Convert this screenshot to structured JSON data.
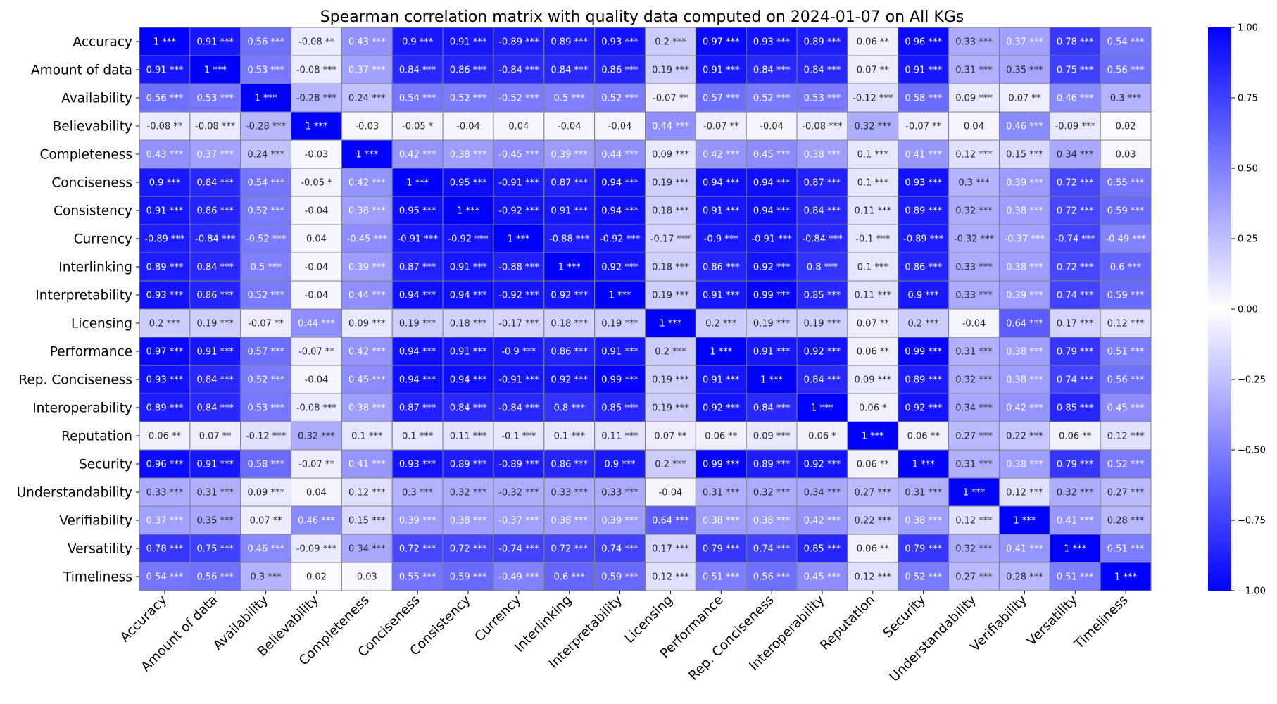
{
  "chart_data": {
    "type": "heatmap",
    "title": "Spearman correlation matrix with quality data computed on 2024-01-07 on All KGs",
    "xlabel": "",
    "ylabel": "",
    "labels": [
      "Accuracy",
      "Amount of data",
      "Availability",
      "Believability",
      "Completeness",
      "Conciseness",
      "Consistency",
      "Currency",
      "Interlinking",
      "Interpretability",
      "Licensing",
      "Performance",
      "Rep. Conciseness",
      "Interoperability",
      "Reputation",
      "Security",
      "Understandability",
      "Verifiability",
      "Versatility",
      "Timeliness"
    ],
    "values": [
      [
        1.0,
        0.91,
        0.56,
        -0.08,
        0.43,
        0.9,
        0.91,
        -0.89,
        0.89,
        0.93,
        0.2,
        0.97,
        0.93,
        0.89,
        0.06,
        0.96,
        0.33,
        0.37,
        0.78,
        0.54
      ],
      [
        0.91,
        1.0,
        0.53,
        -0.08,
        0.37,
        0.84,
        0.86,
        -0.84,
        0.84,
        0.86,
        0.19,
        0.91,
        0.84,
        0.84,
        0.07,
        0.91,
        0.31,
        0.35,
        0.75,
        0.56
      ],
      [
        0.56,
        0.53,
        1.0,
        -0.28,
        0.24,
        0.54,
        0.52,
        -0.52,
        0.5,
        0.52,
        -0.07,
        0.57,
        0.52,
        0.53,
        -0.12,
        0.58,
        0.09,
        0.07,
        0.46,
        0.3
      ],
      [
        -0.08,
        -0.08,
        -0.28,
        1.0,
        -0.03,
        -0.05,
        -0.04,
        0.04,
        -0.04,
        -0.04,
        0.44,
        -0.07,
        -0.04,
        -0.08,
        0.32,
        -0.07,
        0.04,
        0.46,
        -0.09,
        0.02
      ],
      [
        0.43,
        0.37,
        0.24,
        -0.03,
        1.0,
        0.42,
        0.38,
        -0.45,
        0.39,
        0.44,
        0.09,
        0.42,
        0.45,
        0.38,
        0.1,
        0.41,
        0.12,
        0.15,
        0.34,
        0.03
      ],
      [
        0.9,
        0.84,
        0.54,
        -0.05,
        0.42,
        1.0,
        0.95,
        -0.91,
        0.87,
        0.94,
        0.19,
        0.94,
        0.94,
        0.87,
        0.1,
        0.93,
        0.3,
        0.39,
        0.72,
        0.55
      ],
      [
        0.91,
        0.86,
        0.52,
        -0.04,
        0.38,
        0.95,
        1.0,
        -0.92,
        0.91,
        0.94,
        0.18,
        0.91,
        0.94,
        0.84,
        0.11,
        0.89,
        0.32,
        0.38,
        0.72,
        0.59
      ],
      [
        -0.89,
        -0.84,
        -0.52,
        0.04,
        -0.45,
        -0.91,
        -0.92,
        1.0,
        -0.88,
        -0.92,
        -0.17,
        -0.9,
        -0.91,
        -0.84,
        -0.1,
        -0.89,
        -0.32,
        -0.37,
        -0.74,
        -0.49
      ],
      [
        0.89,
        0.84,
        0.5,
        -0.04,
        0.39,
        0.87,
        0.91,
        -0.88,
        1.0,
        0.92,
        0.18,
        0.86,
        0.92,
        0.8,
        0.1,
        0.86,
        0.33,
        0.38,
        0.72,
        0.6
      ],
      [
        0.93,
        0.86,
        0.52,
        -0.04,
        0.44,
        0.94,
        0.94,
        -0.92,
        0.92,
        1.0,
        0.19,
        0.91,
        0.99,
        0.85,
        0.11,
        0.9,
        0.33,
        0.39,
        0.74,
        0.59
      ],
      [
        0.2,
        0.19,
        -0.07,
        0.44,
        0.09,
        0.19,
        0.18,
        -0.17,
        0.18,
        0.19,
        1.0,
        0.2,
        0.19,
        0.19,
        0.07,
        0.2,
        -0.04,
        0.64,
        0.17,
        0.12
      ],
      [
        0.97,
        0.91,
        0.57,
        -0.07,
        0.42,
        0.94,
        0.91,
        -0.9,
        0.86,
        0.91,
        0.2,
        1.0,
        0.91,
        0.92,
        0.06,
        0.99,
        0.31,
        0.38,
        0.79,
        0.51
      ],
      [
        0.93,
        0.84,
        0.52,
        -0.04,
        0.45,
        0.94,
        0.94,
        -0.91,
        0.92,
        0.99,
        0.19,
        0.91,
        1.0,
        0.84,
        0.09,
        0.89,
        0.32,
        0.38,
        0.74,
        0.56
      ],
      [
        0.89,
        0.84,
        0.53,
        -0.08,
        0.38,
        0.87,
        0.84,
        -0.84,
        0.8,
        0.85,
        0.19,
        0.92,
        0.84,
        1.0,
        0.06,
        0.92,
        0.34,
        0.42,
        0.85,
        0.45
      ],
      [
        0.06,
        0.07,
        -0.12,
        0.32,
        0.1,
        0.1,
        0.11,
        -0.1,
        0.1,
        0.11,
        0.07,
        0.06,
        0.09,
        0.06,
        1.0,
        0.06,
        0.27,
        0.22,
        0.06,
        0.12
      ],
      [
        0.96,
        0.91,
        0.58,
        -0.07,
        0.41,
        0.93,
        0.89,
        -0.89,
        0.86,
        0.9,
        0.2,
        0.99,
        0.89,
        0.92,
        0.06,
        1.0,
        0.31,
        0.38,
        0.79,
        0.52
      ],
      [
        0.33,
        0.31,
        0.09,
        0.04,
        0.12,
        0.3,
        0.32,
        -0.32,
        0.33,
        0.33,
        -0.04,
        0.31,
        0.32,
        0.34,
        0.27,
        0.31,
        1.0,
        0.12,
        0.32,
        0.27
      ],
      [
        0.37,
        0.35,
        0.07,
        0.46,
        0.15,
        0.39,
        0.38,
        -0.37,
        0.38,
        0.39,
        0.64,
        0.38,
        0.38,
        0.42,
        0.22,
        0.38,
        0.12,
        1.0,
        0.41,
        0.28
      ],
      [
        0.78,
        0.75,
        0.46,
        -0.09,
        0.34,
        0.72,
        0.72,
        -0.74,
        0.72,
        0.74,
        0.17,
        0.79,
        0.74,
        0.85,
        0.06,
        0.79,
        0.32,
        0.41,
        1.0,
        0.51
      ],
      [
        0.54,
        0.56,
        0.3,
        0.02,
        0.03,
        0.55,
        0.59,
        -0.49,
        0.6,
        0.59,
        0.12,
        0.51,
        0.56,
        0.45,
        0.12,
        0.52,
        0.27,
        0.28,
        0.51,
        1.0
      ]
    ],
    "significance": [
      [
        "***",
        "***",
        "***",
        "**",
        "***",
        "***",
        "***",
        "***",
        "***",
        "***",
        "***",
        "***",
        "***",
        "***",
        "**",
        "***",
        "***",
        "***",
        "***",
        "***"
      ],
      [
        "***",
        "***",
        "***",
        "***",
        "***",
        "***",
        "***",
        "***",
        "***",
        "***",
        "***",
        "***",
        "***",
        "***",
        "**",
        "***",
        "***",
        "***",
        "***",
        "***"
      ],
      [
        "***",
        "***",
        "***",
        "***",
        "***",
        "***",
        "***",
        "***",
        "***",
        "***",
        "**",
        "***",
        "***",
        "***",
        "***",
        "***",
        "***",
        "**",
        "***",
        "***"
      ],
      [
        "**",
        "***",
        "***",
        "***",
        "",
        "*",
        "",
        "",
        "",
        "",
        "***",
        "**",
        "",
        "***",
        "***",
        "**",
        "",
        "***",
        "***",
        ""
      ],
      [
        "***",
        "***",
        "***",
        "",
        "***",
        "***",
        "***",
        "***",
        "***",
        "***",
        "***",
        "***",
        "***",
        "***",
        "***",
        "***",
        "***",
        "***",
        "***",
        ""
      ],
      [
        "***",
        "***",
        "***",
        "*",
        "***",
        "***",
        "***",
        "***",
        "***",
        "***",
        "***",
        "***",
        "***",
        "***",
        "***",
        "***",
        "***",
        "***",
        "***",
        "***"
      ],
      [
        "***",
        "***",
        "***",
        "",
        "***",
        "***",
        "***",
        "***",
        "***",
        "***",
        "***",
        "***",
        "***",
        "***",
        "***",
        "***",
        "***",
        "***",
        "***",
        "***"
      ],
      [
        "***",
        "***",
        "***",
        "",
        "***",
        "***",
        "***",
        "***",
        "***",
        "***",
        "***",
        "***",
        "***",
        "***",
        "***",
        "***",
        "***",
        "***",
        "***",
        "***"
      ],
      [
        "***",
        "***",
        "***",
        "",
        "***",
        "***",
        "***",
        "***",
        "***",
        "***",
        "***",
        "***",
        "***",
        "***",
        "***",
        "***",
        "***",
        "***",
        "***",
        "***"
      ],
      [
        "***",
        "***",
        "***",
        "",
        "***",
        "***",
        "***",
        "***",
        "***",
        "***",
        "***",
        "***",
        "***",
        "***",
        "***",
        "***",
        "***",
        "***",
        "***",
        "***"
      ],
      [
        "***",
        "***",
        "**",
        "***",
        "***",
        "***",
        "***",
        "***",
        "***",
        "***",
        "***",
        "***",
        "***",
        "***",
        "**",
        "***",
        "",
        "***",
        "***",
        "***"
      ],
      [
        "***",
        "***",
        "***",
        "**",
        "***",
        "***",
        "***",
        "***",
        "***",
        "***",
        "***",
        "***",
        "***",
        "***",
        "**",
        "***",
        "***",
        "***",
        "***",
        "***"
      ],
      [
        "***",
        "***",
        "***",
        "",
        "***",
        "***",
        "***",
        "***",
        "***",
        "***",
        "***",
        "***",
        "***",
        "***",
        "***",
        "***",
        "***",
        "***",
        "***",
        "***"
      ],
      [
        "***",
        "***",
        "***",
        "***",
        "***",
        "***",
        "***",
        "***",
        "***",
        "***",
        "***",
        "***",
        "***",
        "***",
        "*",
        "***",
        "***",
        "***",
        "***",
        "***"
      ],
      [
        "**",
        "**",
        "***",
        "***",
        "***",
        "***",
        "***",
        "***",
        "***",
        "***",
        "**",
        "**",
        "***",
        "*",
        "***",
        "**",
        "***",
        "***",
        "**",
        "***"
      ],
      [
        "***",
        "***",
        "***",
        "**",
        "***",
        "***",
        "***",
        "***",
        "***",
        "***",
        "***",
        "***",
        "***",
        "***",
        "**",
        "***",
        "***",
        "***",
        "***",
        "***"
      ],
      [
        "***",
        "***",
        "***",
        "",
        "***",
        "***",
        "***",
        "***",
        "***",
        "***",
        "",
        "***",
        "***",
        "***",
        "***",
        "***",
        "***",
        "***",
        "***",
        "***"
      ],
      [
        "***",
        "***",
        "**",
        "***",
        "***",
        "***",
        "***",
        "***",
        "***",
        "***",
        "***",
        "***",
        "***",
        "***",
        "***",
        "***",
        "***",
        "***",
        "***",
        "***"
      ],
      [
        "***",
        "***",
        "***",
        "***",
        "***",
        "***",
        "***",
        "***",
        "***",
        "***",
        "***",
        "***",
        "***",
        "***",
        "**",
        "***",
        "***",
        "***",
        "***",
        "***"
      ],
      [
        "***",
        "***",
        "***",
        "",
        "",
        "***",
        "***",
        "***",
        "***",
        "***",
        "***",
        "***",
        "***",
        "***",
        "***",
        "***",
        "***",
        "***",
        "***",
        "***"
      ]
    ],
    "vmin": -1.0,
    "vmax": 1.0,
    "colormap": {
      "low": "#ffffff",
      "high": "#0000ff",
      "symmetric_abs": true
    },
    "colorbar_ticks": [
      "1.00",
      "0.75",
      "0.50",
      "0.25",
      "0.00",
      "−0.25",
      "−0.50",
      "−0.75",
      "−1.00"
    ],
    "colorbar_tick_values": [
      1.0,
      0.75,
      0.5,
      0.25,
      0.0,
      -0.25,
      -0.5,
      -0.75,
      -1.0
    ],
    "grid_color": "#808080"
  }
}
